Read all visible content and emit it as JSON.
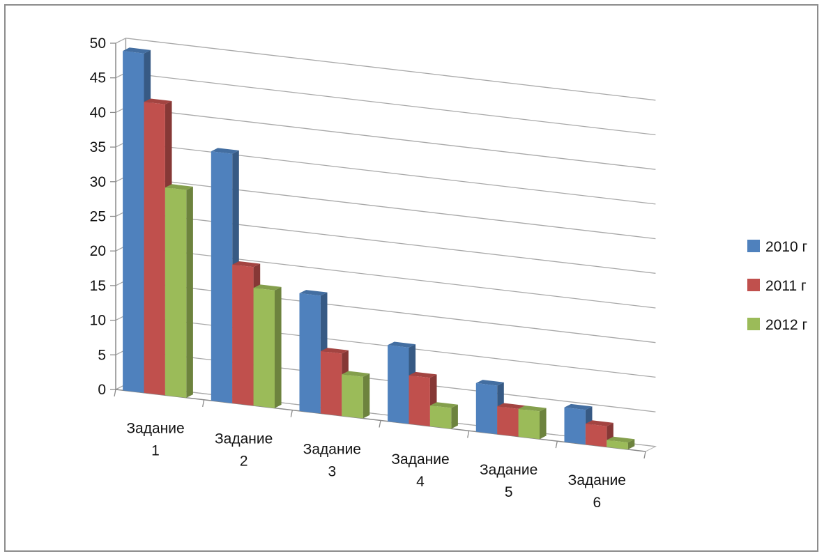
{
  "chart_data": {
    "type": "bar",
    "title": "",
    "xlabel": "",
    "ylabel": "",
    "ylim": [
      0,
      50
    ],
    "y_ticks": [
      "0",
      "5",
      "10",
      "15",
      "20",
      "25",
      "30",
      "35",
      "40",
      "45",
      "50"
    ],
    "categories": [
      [
        "Задание",
        "1"
      ],
      [
        "Задание",
        "2"
      ],
      [
        "Задание",
        "3"
      ],
      [
        "Задание",
        "4"
      ],
      [
        "Задание",
        "5"
      ],
      [
        "Задание",
        "6"
      ]
    ],
    "series": [
      {
        "name": "2010 г",
        "color": "#4f81bd",
        "values": [
          49,
          36,
          17,
          11,
          7,
          5
        ]
      },
      {
        "name": "2011 г",
        "color": "#c0504d",
        "values": [
          42,
          20,
          9,
          7,
          4,
          3
        ]
      },
      {
        "name": "2012 г",
        "color": "#9bbb59",
        "values": [
          30,
          17,
          6,
          3,
          4,
          1
        ]
      }
    ],
    "grid": true,
    "legend_position": "right",
    "style": "3d-clustered-column"
  }
}
